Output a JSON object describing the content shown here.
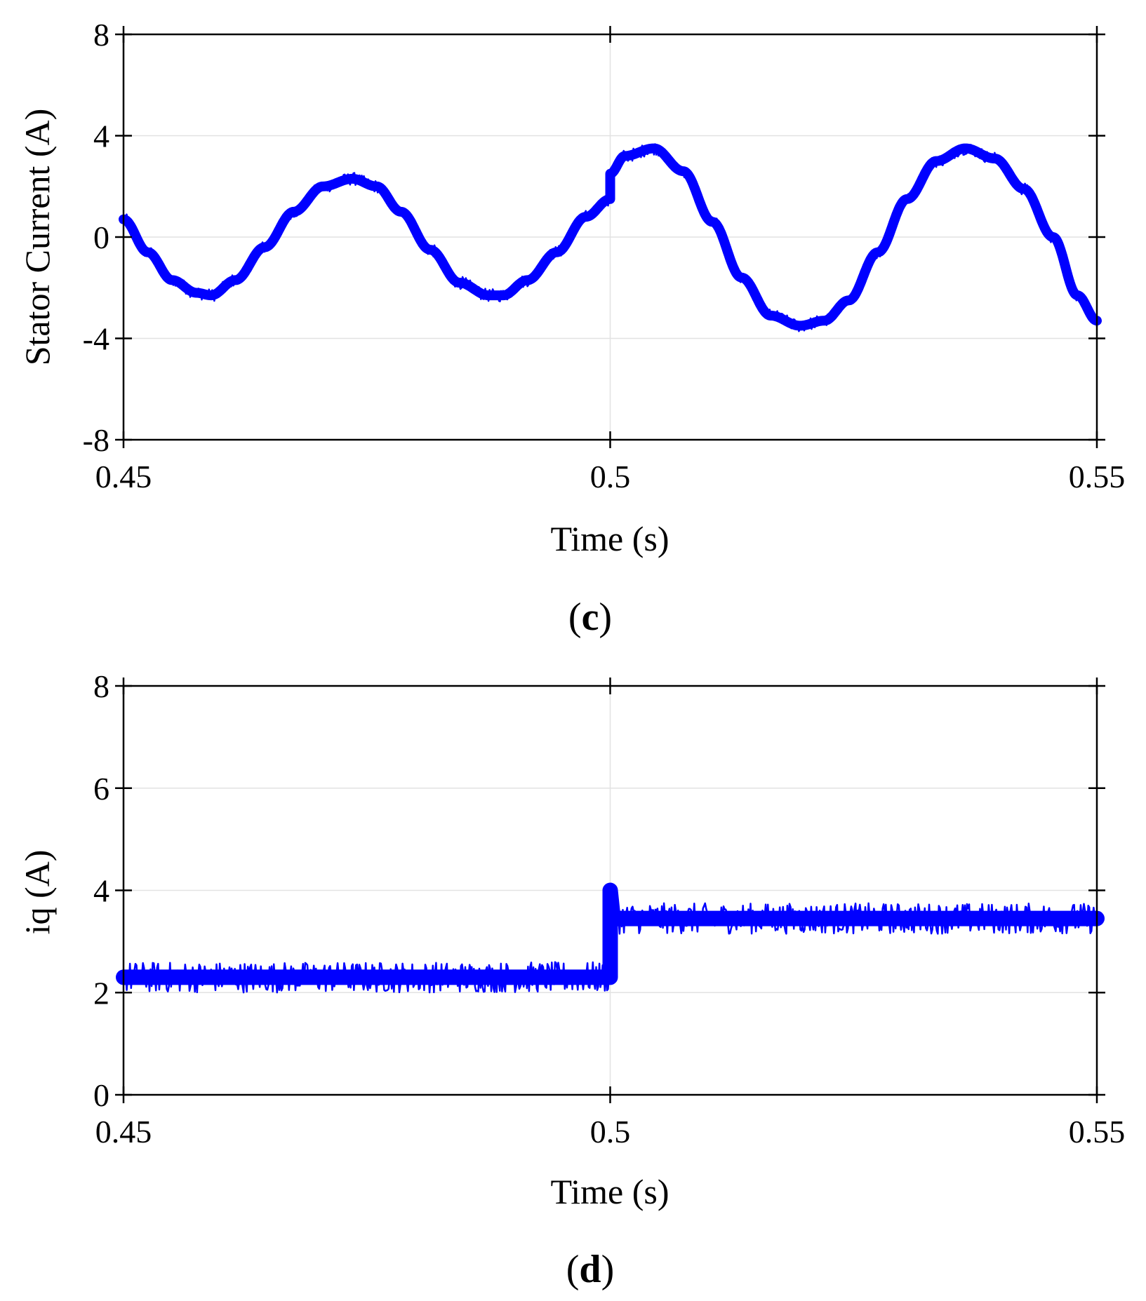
{
  "chart_data": [
    {
      "panel": "c",
      "type": "line",
      "xlabel": "Time (s)",
      "ylabel": "Stator Current (A)",
      "xlim": [
        0.45,
        0.55
      ],
      "ylim": [
        -8,
        8
      ],
      "xticks": [
        0.45,
        0.5,
        0.55
      ],
      "xtick_labels": [
        "0.45",
        "0.5",
        "0.55"
      ],
      "yticks": [
        8,
        4,
        0,
        -4,
        -8
      ],
      "ytick_labels": [
        "8",
        "4",
        "0",
        "-4",
        "-8"
      ],
      "grid": true,
      "color": "#0000ff",
      "series": [
        {
          "name": "Stator Current",
          "noise_band": 0.25,
          "x": [
            0.45,
            0.4525,
            0.455,
            0.4575,
            0.459,
            0.4615,
            0.4645,
            0.4675,
            0.4705,
            0.4735,
            0.476,
            0.4785,
            0.4815,
            0.4845,
            0.4875,
            0.489,
            0.4915,
            0.4945,
            0.4975,
            0.5,
            0.5,
            0.5015,
            0.5045,
            0.5075,
            0.5105,
            0.5135,
            0.5165,
            0.5195,
            0.522,
            0.5245,
            0.5275,
            0.5305,
            0.5335,
            0.5365,
            0.5395,
            0.5425,
            0.5455,
            0.548,
            0.55
          ],
          "y": [
            0.7,
            -0.6,
            -1.7,
            -2.2,
            -2.3,
            -1.7,
            -0.4,
            1.0,
            2.0,
            2.3,
            2.0,
            1.0,
            -0.5,
            -1.8,
            -2.3,
            -2.3,
            -1.7,
            -0.6,
            0.8,
            1.5,
            2.5,
            3.2,
            3.5,
            2.6,
            0.6,
            -1.6,
            -3.1,
            -3.5,
            -3.3,
            -2.5,
            -0.6,
            1.5,
            3.0,
            3.5,
            3.1,
            1.9,
            0.0,
            -2.3,
            -3.3
          ]
        }
      ]
    },
    {
      "panel": "d",
      "type": "line",
      "xlabel": "Time (s)",
      "ylabel": "iq (A)",
      "xlim": [
        0.45,
        0.55
      ],
      "ylim": [
        0,
        8
      ],
      "xticks": [
        0.45,
        0.5,
        0.55
      ],
      "xtick_labels": [
        "0.45",
        "0.5",
        "0.55"
      ],
      "yticks": [
        8,
        6,
        4,
        2,
        0
      ],
      "ytick_labels": [
        "8",
        "6",
        "4",
        "2",
        "0"
      ],
      "grid": true,
      "color": "#0000ff",
      "series": [
        {
          "name": "iq",
          "noise_band": 0.3,
          "x": [
            0.45,
            0.5,
            0.5,
            0.5003,
            0.55
          ],
          "y": [
            2.3,
            2.3,
            4.0,
            3.45,
            3.45
          ]
        }
      ]
    }
  ],
  "captions": {
    "c": {
      "open": "(",
      "letter": "c",
      "close": ")"
    },
    "d": {
      "open": "(",
      "letter": "d",
      "close": ")"
    }
  }
}
